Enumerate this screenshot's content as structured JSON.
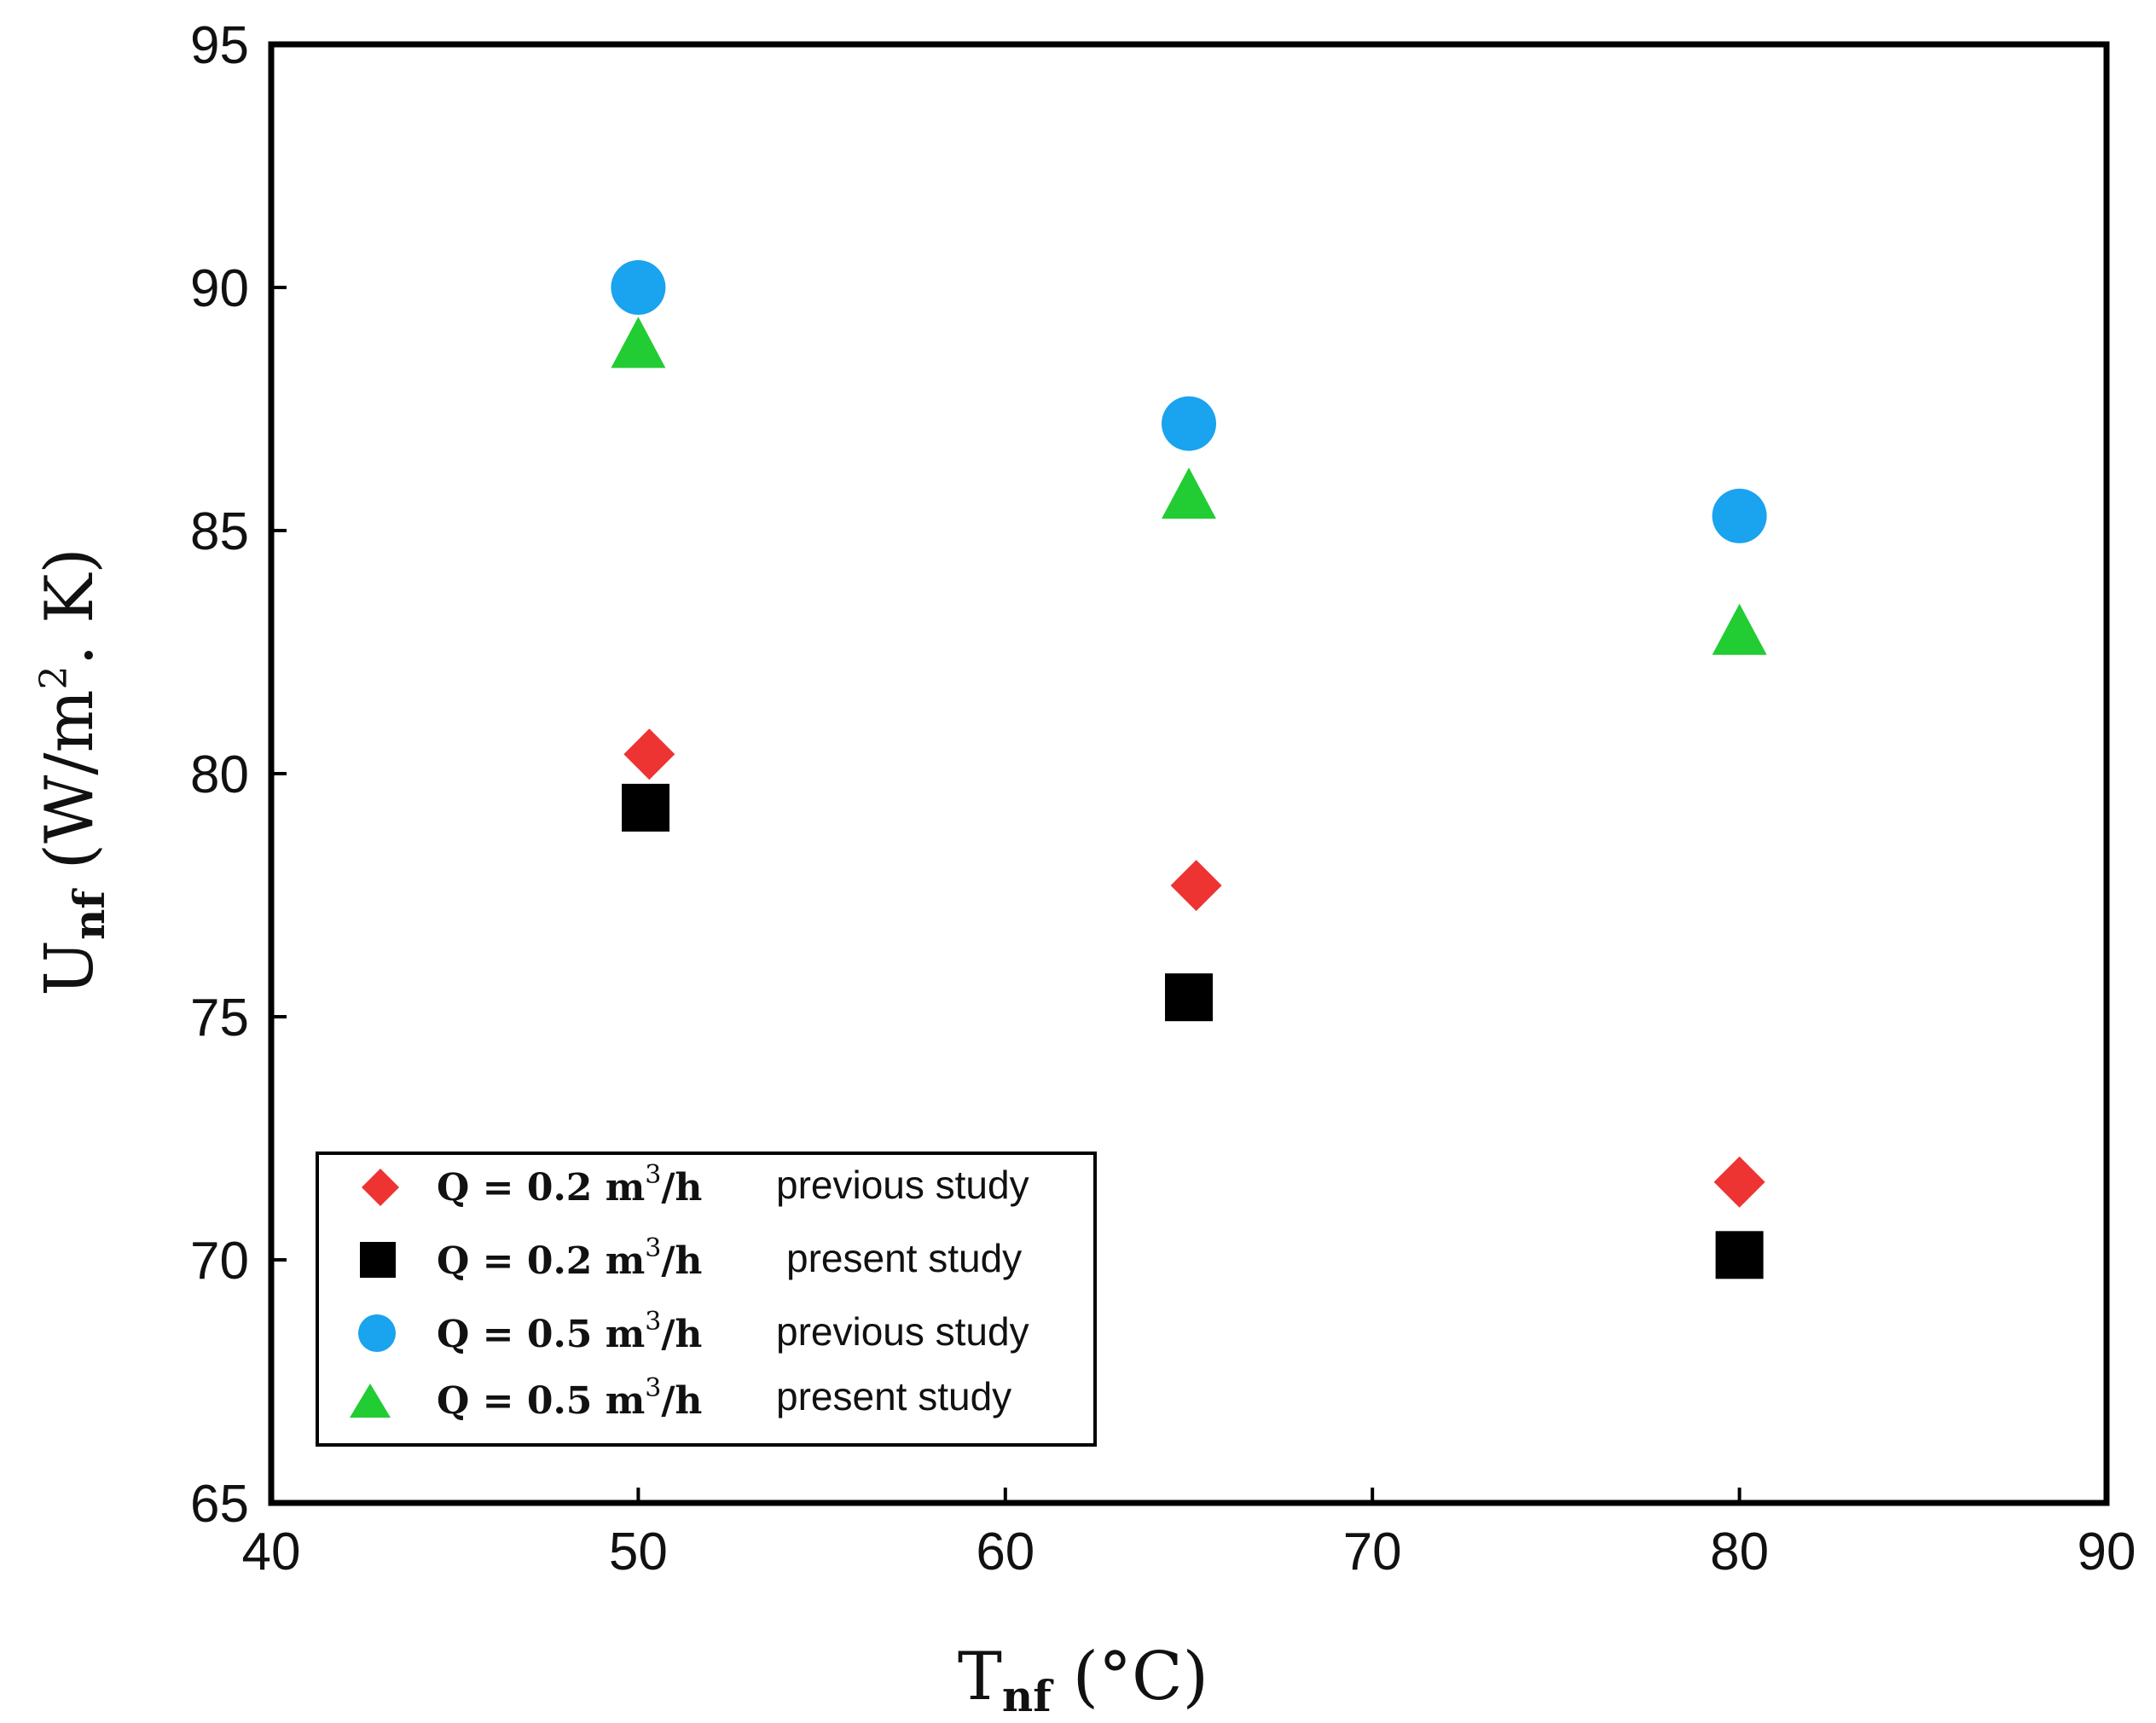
{
  "chart_data": {
    "type": "scatter",
    "title": "",
    "xlabel": {
      "main": "T",
      "sub": "nf",
      "rest": " (°C)"
    },
    "ylabel": {
      "main": "U",
      "sub": "nf",
      "rest1": " (W/m",
      "sup": "2",
      "rest2": ". K)"
    },
    "xlim": [
      40,
      90
    ],
    "ylim": [
      65,
      95
    ],
    "x_ticks": [
      40,
      50,
      60,
      70,
      80,
      90
    ],
    "y_ticks": [
      65,
      70,
      75,
      80,
      85,
      90,
      95
    ],
    "x_tick_labels": [
      "40",
      "50",
      "60",
      "70",
      "80",
      "90"
    ],
    "y_tick_labels": [
      "65",
      "70",
      "75",
      "80",
      "85",
      "90",
      "95"
    ],
    "grid": false,
    "legend_position": "bottom-left",
    "series": [
      {
        "name": "Q = 0.2 m³/h previous study",
        "label_q": "Q = 0.2 m",
        "label_sup": "3",
        "label_unit": "/h",
        "note": "previous study",
        "marker": "diamond",
        "color": "#ee3333",
        "x": [
          50.3,
          65.2,
          80.0
        ],
        "y": [
          80.4,
          77.7,
          71.6
        ]
      },
      {
        "name": "Q = 0.2 m³/h present study",
        "label_q": "Q = 0.2 m",
        "label_sup": "3",
        "label_unit": "/h",
        "note": "present study",
        "marker": "square",
        "color": "#000000",
        "x": [
          50.2,
          65.0,
          80.0
        ],
        "y": [
          79.3,
          75.4,
          70.1
        ]
      },
      {
        "name": "Q = 0.5 m³/h previous study",
        "label_q": "Q = 0.5 m",
        "label_sup": "3",
        "label_unit": "/h",
        "note": "previous study",
        "marker": "circle",
        "color": "#1aa3ee",
        "x": [
          50.0,
          65.0,
          80.0
        ],
        "y": [
          90.0,
          87.2,
          85.3
        ]
      },
      {
        "name": "Q = 0.5 m³/h present study",
        "label_q": "Q = 0.5 m",
        "label_sup": "3",
        "label_unit": "/h",
        "note": "present study",
        "marker": "triangle",
        "color": "#22cc33",
        "x": [
          50.0,
          65.0,
          80.0
        ],
        "y": [
          88.8,
          85.7,
          82.9
        ]
      }
    ]
  }
}
